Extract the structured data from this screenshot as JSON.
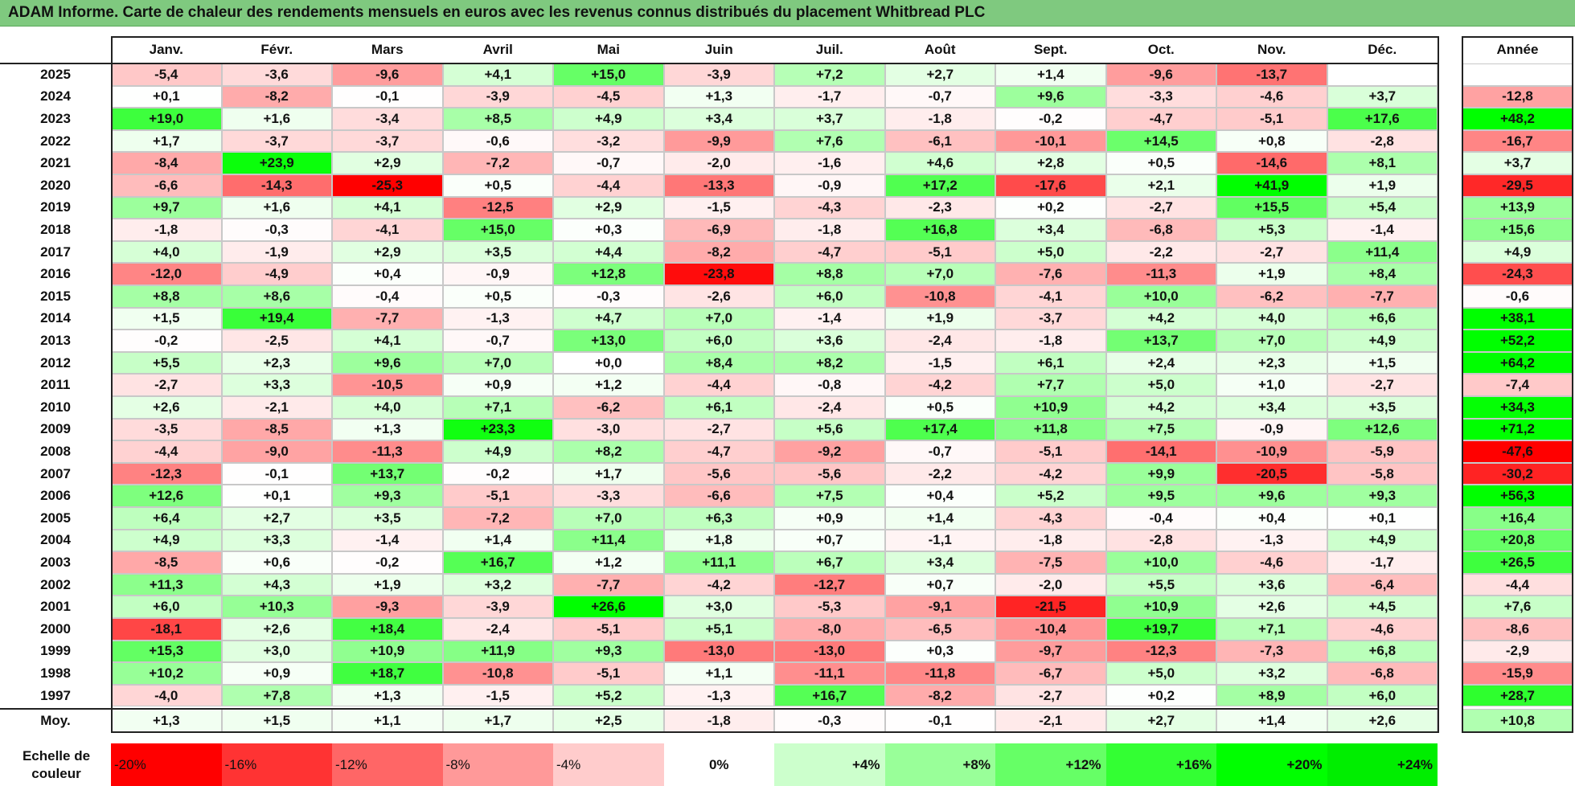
{
  "title": "ADAM Informe. Carte de chaleur des rendements mensuels en euros avec les revenus connus distribués du placement Whitbread PLC",
  "chart_data": {
    "type": "heatmap",
    "title": "ADAM Informe. Carte de chaleur des rendements mensuels en euros avec les revenus connus distribués du placement Whitbread PLC",
    "columns": [
      "Janv.",
      "Févr.",
      "Mars",
      "Avril",
      "Mai",
      "Juin",
      "Juil.",
      "Août",
      "Sept.",
      "Oct.",
      "Nov.",
      "Déc."
    ],
    "year_column_label": "Année",
    "rows": [
      {
        "year": "2025",
        "values": [
          "-5,4",
          "-3,6",
          "-9,6",
          "+4,1",
          "+15,0",
          "-3,9",
          "+7,2",
          "+2,7",
          "+1,4",
          "-9,6",
          "-13,7",
          ""
        ],
        "annual": ""
      },
      {
        "year": "2024",
        "values": [
          "+0,1",
          "-8,2",
          "-0,1",
          "-3,9",
          "-4,5",
          "+1,3",
          "-1,7",
          "-0,7",
          "+9,6",
          "-3,3",
          "-4,6",
          "+3,7"
        ],
        "annual": "-12,8"
      },
      {
        "year": "2023",
        "values": [
          "+19,0",
          "+1,6",
          "-3,4",
          "+8,5",
          "+4,9",
          "+3,4",
          "+3,7",
          "-1,8",
          "-0,2",
          "-4,7",
          "-5,1",
          "+17,6"
        ],
        "annual": "+48,2"
      },
      {
        "year": "2022",
        "values": [
          "+1,7",
          "-3,7",
          "-3,7",
          "-0,6",
          "-3,2",
          "-9,9",
          "+7,6",
          "-6,1",
          "-10,1",
          "+14,5",
          "+0,8",
          "-2,8"
        ],
        "annual": "-16,7"
      },
      {
        "year": "2021",
        "values": [
          "-8,4",
          "+23,9",
          "+2,9",
          "-7,2",
          "-0,7",
          "-2,0",
          "-1,6",
          "+4,6",
          "+2,8",
          "+0,5",
          "-14,6",
          "+8,1"
        ],
        "annual": "+3,7"
      },
      {
        "year": "2020",
        "values": [
          "-6,6",
          "-14,3",
          "-25,3",
          "+0,5",
          "-4,4",
          "-13,3",
          "-0,9",
          "+17,2",
          "-17,6",
          "+2,1",
          "+41,9",
          "+1,9"
        ],
        "annual": "-29,5"
      },
      {
        "year": "2019",
        "values": [
          "+9,7",
          "+1,6",
          "+4,1",
          "-12,5",
          "+2,9",
          "-1,5",
          "-4,3",
          "-2,3",
          "+0,2",
          "-2,7",
          "+15,5",
          "+5,4"
        ],
        "annual": "+13,9"
      },
      {
        "year": "2018",
        "values": [
          "-1,8",
          "-0,3",
          "-4,1",
          "+15,0",
          "+0,3",
          "-6,9",
          "-1,8",
          "+16,8",
          "+3,4",
          "-6,8",
          "+5,3",
          "-1,4"
        ],
        "annual": "+15,6"
      },
      {
        "year": "2017",
        "values": [
          "+4,0",
          "-1,9",
          "+2,9",
          "+3,5",
          "+4,4",
          "-8,2",
          "-4,7",
          "-5,1",
          "+5,0",
          "-2,2",
          "-2,7",
          "+11,4"
        ],
        "annual": "+4,9"
      },
      {
        "year": "2016",
        "values": [
          "-12,0",
          "-4,9",
          "+0,4",
          "-0,9",
          "+12,8",
          "-23,8",
          "+8,8",
          "+7,0",
          "-7,6",
          "-11,3",
          "+1,9",
          "+8,4"
        ],
        "annual": "-24,3"
      },
      {
        "year": "2015",
        "values": [
          "+8,8",
          "+8,6",
          "-0,4",
          "+0,5",
          "-0,3",
          "-2,6",
          "+6,0",
          "-10,8",
          "-4,1",
          "+10,0",
          "-6,2",
          "-7,7"
        ],
        "annual": "-0,6"
      },
      {
        "year": "2014",
        "values": [
          "+1,5",
          "+19,4",
          "-7,7",
          "-1,3",
          "+4,7",
          "+7,0",
          "-1,4",
          "+1,9",
          "-3,7",
          "+4,2",
          "+4,0",
          "+6,6"
        ],
        "annual": "+38,1"
      },
      {
        "year": "2013",
        "values": [
          "-0,2",
          "-2,5",
          "+4,1",
          "-0,7",
          "+13,0",
          "+6,0",
          "+3,6",
          "-2,4",
          "-1,8",
          "+13,7",
          "+7,0",
          "+4,9"
        ],
        "annual": "+52,2"
      },
      {
        "year": "2012",
        "values": [
          "+5,5",
          "+2,3",
          "+9,6",
          "+7,0",
          "+0,0",
          "+8,4",
          "+8,2",
          "-1,5",
          "+6,1",
          "+2,4",
          "+2,3",
          "+1,5"
        ],
        "annual": "+64,2"
      },
      {
        "year": "2011",
        "values": [
          "-2,7",
          "+3,3",
          "-10,5",
          "+0,9",
          "+1,2",
          "-4,4",
          "-0,8",
          "-4,2",
          "+7,7",
          "+5,0",
          "+1,0",
          "-2,7"
        ],
        "annual": "-7,4"
      },
      {
        "year": "2010",
        "values": [
          "+2,6",
          "-2,1",
          "+4,0",
          "+7,1",
          "-6,2",
          "+6,1",
          "-2,4",
          "+0,5",
          "+10,9",
          "+4,2",
          "+3,4",
          "+3,5"
        ],
        "annual": "+34,3"
      },
      {
        "year": "2009",
        "values": [
          "-3,5",
          "-8,5",
          "+1,3",
          "+23,3",
          "-3,0",
          "-2,7",
          "+5,6",
          "+17,4",
          "+11,8",
          "+7,5",
          "-0,9",
          "+12,6"
        ],
        "annual": "+71,2"
      },
      {
        "year": "2008",
        "values": [
          "-4,4",
          "-9,0",
          "-11,3",
          "+4,9",
          "+8,2",
          "-4,7",
          "-9,2",
          "-0,7",
          "-5,1",
          "-14,1",
          "-10,9",
          "-5,9"
        ],
        "annual": "-47,6"
      },
      {
        "year": "2007",
        "values": [
          "-12,3",
          "-0,1",
          "+13,7",
          "-0,2",
          "+1,7",
          "-5,6",
          "-5,6",
          "-2,2",
          "-4,2",
          "+9,9",
          "-20,5",
          "-5,8"
        ],
        "annual": "-30,2"
      },
      {
        "year": "2006",
        "values": [
          "+12,6",
          "+0,1",
          "+9,3",
          "-5,1",
          "-3,3",
          "-6,6",
          "+7,5",
          "+0,4",
          "+5,2",
          "+9,5",
          "+9,6",
          "+9,3"
        ],
        "annual": "+56,3"
      },
      {
        "year": "2005",
        "values": [
          "+6,4",
          "+2,7",
          "+3,5",
          "-7,2",
          "+7,0",
          "+6,3",
          "+0,9",
          "+1,4",
          "-4,3",
          "-0,4",
          "+0,4",
          "+0,1"
        ],
        "annual": "+16,4"
      },
      {
        "year": "2004",
        "values": [
          "+4,9",
          "+3,3",
          "-1,4",
          "+1,4",
          "+11,4",
          "+1,8",
          "+0,7",
          "-1,1",
          "-1,8",
          "-2,8",
          "-1,3",
          "+4,9"
        ],
        "annual": "+20,8"
      },
      {
        "year": "2003",
        "values": [
          "-8,5",
          "+0,6",
          "-0,2",
          "+16,7",
          "+1,2",
          "+11,1",
          "+6,7",
          "+3,4",
          "-7,5",
          "+10,0",
          "-4,6",
          "-1,7"
        ],
        "annual": "+26,5"
      },
      {
        "year": "2002",
        "values": [
          "+11,3",
          "+4,3",
          "+1,9",
          "+3,2",
          "-7,7",
          "-4,2",
          "-12,7",
          "+0,7",
          "-2,0",
          "+5,5",
          "+3,6",
          "-6,4"
        ],
        "annual": "-4,4"
      },
      {
        "year": "2001",
        "values": [
          "+6,0",
          "+10,3",
          "-9,3",
          "-3,9",
          "+26,6",
          "+3,0",
          "-5,3",
          "-9,1",
          "-21,5",
          "+10,9",
          "+2,6",
          "+4,5"
        ],
        "annual": "+7,6"
      },
      {
        "year": "2000",
        "values": [
          "-18,1",
          "+2,6",
          "+18,4",
          "-2,4",
          "-5,1",
          "+5,1",
          "-8,0",
          "-6,5",
          "-10,4",
          "+19,7",
          "+7,1",
          "-4,6"
        ],
        "annual": "-8,6"
      },
      {
        "year": "1999",
        "values": [
          "+15,3",
          "+3,0",
          "+10,9",
          "+11,9",
          "+9,3",
          "-13,0",
          "-13,0",
          "+0,3",
          "-9,7",
          "-12,3",
          "-7,3",
          "+6,8"
        ],
        "annual": "-2,9"
      },
      {
        "year": "1998",
        "values": [
          "+10,2",
          "+0,9",
          "+18,7",
          "-10,8",
          "-5,1",
          "+1,1",
          "-11,1",
          "-11,8",
          "-6,7",
          "+5,0",
          "+3,2",
          "-6,8"
        ],
        "annual": "-15,9"
      },
      {
        "year": "1997",
        "values": [
          "-4,0",
          "+7,8",
          "+1,3",
          "-1,5",
          "+5,2",
          "-1,3",
          "+16,7",
          "-8,2",
          "-2,7",
          "+0,2",
          "+8,9",
          "+6,0"
        ],
        "annual": "+28,7"
      }
    ],
    "average_row": {
      "label": "Moy.",
      "values": [
        "+1,3",
        "+1,5",
        "+1,1",
        "+1,7",
        "+2,5",
        "-1,8",
        "-0,3",
        "-0,1",
        "-2,1",
        "+2,7",
        "+1,4",
        "+2,6"
      ],
      "annual": "+10,8"
    },
    "color_scale": {
      "label_line1": "Echelle de",
      "label_line2": "couleur",
      "stops": [
        {
          "label": "-20%",
          "value": -20,
          "color": "#ff0000"
        },
        {
          "label": "-16%",
          "value": -16,
          "color": "#ff3333"
        },
        {
          "label": "-12%",
          "value": -12,
          "color": "#ff6666"
        },
        {
          "label": "-8%",
          "value": -8,
          "color": "#ff9999"
        },
        {
          "label": "-4%",
          "value": -4,
          "color": "#ffcccc"
        },
        {
          "label": "0%",
          "value": 0,
          "color": "#ffffff"
        },
        {
          "label": "+4%",
          "value": 4,
          "color": "#ccffcc"
        },
        {
          "label": "+8%",
          "value": 8,
          "color": "#99ff99"
        },
        {
          "label": "+12%",
          "value": 12,
          "color": "#66ff66"
        },
        {
          "label": "+16%",
          "value": 16,
          "color": "#33ff33"
        },
        {
          "label": "+20%",
          "value": 20,
          "color": "#00ff00"
        },
        {
          "label": "+24%",
          "value": 24,
          "color": "#00ee00"
        }
      ]
    }
  }
}
